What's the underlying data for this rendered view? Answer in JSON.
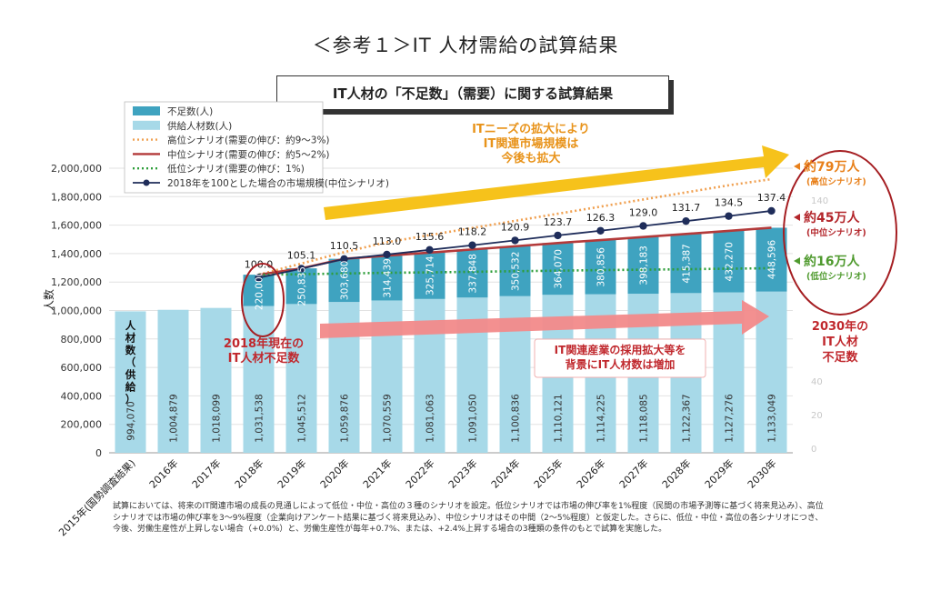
{
  "page_title": "＜参考１＞IT 人材需給の試算結果",
  "chart_title": "IT人材の「不足数」（需要）に関する試算結果",
  "legend": [
    {
      "key": "shortage",
      "label": "不足数(人)",
      "color": "#3fa3c0"
    },
    {
      "key": "supply",
      "label": "供給人材数(人)",
      "color": "#a7d9e8"
    },
    {
      "key": "high",
      "label": "高位シナリオ(需要の伸び：約9～3%)",
      "color": "#f0a050"
    },
    {
      "key": "mid",
      "label": "中位シナリオ(需要の伸び：約5～2%)",
      "color": "#b33a3a"
    },
    {
      "key": "low",
      "label": "低位シナリオ(需要の伸び：1%)",
      "color": "#2e9e3a"
    },
    {
      "key": "index",
      "label": "2018年を100とした場合の市場規模(中位シナリオ)",
      "color": "#1f2d5a"
    }
  ],
  "chart_data": {
    "type": "bar",
    "categories": [
      "2015年(国勢調査結果)",
      "2016年",
      "2017年",
      "2018年",
      "2019年",
      "2020年",
      "2021年",
      "2022年",
      "2023年",
      "2024年",
      "2025年",
      "2026年",
      "2027年",
      "2028年",
      "2029年",
      "2030年"
    ],
    "ylabel": "人数",
    "ylim": [
      0,
      2000000
    ],
    "yticks": [
      "0",
      "200,000",
      "400,000",
      "600,000",
      "800,000",
      "1,000,000",
      "1,200,000",
      "1,400,000",
      "1,600,000",
      "1,800,000",
      "2,000,000"
    ],
    "series": [
      {
        "name": "供給人材数(人)",
        "values": [
          994070,
          1004879,
          1018099,
          1031538,
          1045512,
          1059876,
          1070559,
          1081063,
          1091050,
          1100836,
          1110121,
          1114225,
          1118085,
          1122367,
          1127276,
          1133049
        ],
        "labels": [
          "994,070",
          "1,004,879",
          "1,018,099",
          "1,031,538",
          "1,045,512",
          "1,059,876",
          "1,070,559",
          "1,081,063",
          "1,091,050",
          "1,100,836",
          "1,110,121",
          "1,114,225",
          "1,118,085",
          "1,122,367",
          "1,127,276",
          "1,133,049"
        ]
      },
      {
        "name": "不足数(人)",
        "values": [
          0,
          0,
          0,
          220000,
          250835,
          303680,
          314439,
          325714,
          337848,
          350532,
          364070,
          380856,
          398183,
          415387,
          432270,
          448596
        ],
        "labels": [
          "",
          "",
          "",
          "220,000",
          "250,835",
          "303,680",
          "314,439",
          "325,714",
          "337,848",
          "350,532",
          "364,070",
          "380,856",
          "398,183",
          "415,387",
          "432,270",
          "448,596"
        ]
      },
      {
        "name": "2018年を100とした場合の市場規模(中位シナリオ)",
        "values": [
          null,
          null,
          null,
          100.0,
          105.1,
          110.5,
          113.0,
          115.6,
          118.2,
          120.9,
          123.7,
          126.3,
          129.0,
          131.7,
          134.5,
          137.4
        ],
        "labels": [
          "",
          "",
          "",
          "100.0",
          "105.1",
          "110.5",
          "113.0",
          "115.6",
          "118.2",
          "120.9",
          "123.7",
          "126.3",
          "129.0",
          "131.7",
          "134.5",
          "137.4"
        ]
      },
      {
        "name": "高位シナリオ",
        "values": [
          null,
          null,
          null,
          1251538,
          1330000,
          1410000,
          1480000,
          1530000,
          1580000,
          1630000,
          1680000,
          1730000,
          1780000,
          1830000,
          1880000,
          1923000
        ]
      },
      {
        "name": "低位シナリオ",
        "values": [
          null,
          null,
          null,
          1251538,
          1255000,
          1260000,
          1265000,
          1268000,
          1272000,
          1276000,
          1280000,
          1284000,
          1287000,
          1290000,
          1294000,
          1297000
        ]
      }
    ],
    "right_axis_ticks": [
      "140",
      "40",
      "20",
      "0"
    ],
    "supply_label_chars": [
      "人",
      "材",
      "数",
      "（",
      "供",
      "給",
      "）"
    ]
  },
  "annotations": {
    "it_needs": [
      "ITニーズの拡大により",
      "IT関連市場規模は",
      "今後も拡大"
    ],
    "current_shortage": [
      "2018年現在の",
      "IT人材不足数"
    ],
    "adoption": [
      "IT関連産業の採用拡大等を",
      "背景にIT人材数は増加"
    ],
    "shortage_2030": [
      "2030年の",
      "IT人材",
      "不足数"
    ],
    "high_result": {
      "value": "約79万人",
      "scenario": "(高位シナリオ)"
    },
    "mid_result": {
      "value": "約45万人",
      "scenario": "(中位シナリオ)"
    },
    "low_result": {
      "value": "約16万人",
      "scenario": "(低位シナリオ)"
    }
  },
  "note": "試算においては、将来のIT関連市場の成長の見通しによって低位・中位・高位の３種のシナリオを設定。低位シナリオでは市場の伸び率を1%程度（民間の市場予測等に基づく将来見込み）、高位シナリオでは市場の伸び率を3～9%程度（企業向けアンケート結果に基づく将来見込み）、中位シナリオはその中間（2～5%程度）と仮定した。さらに、低位・中位・高位の各シナリオにつき、今後、労働生産性が上昇しない場合（+0.0%）と、労働生産性が毎年+0.7%、または、+2.4%上昇する場合の3種類の条件のもとで試算を実施した。"
}
